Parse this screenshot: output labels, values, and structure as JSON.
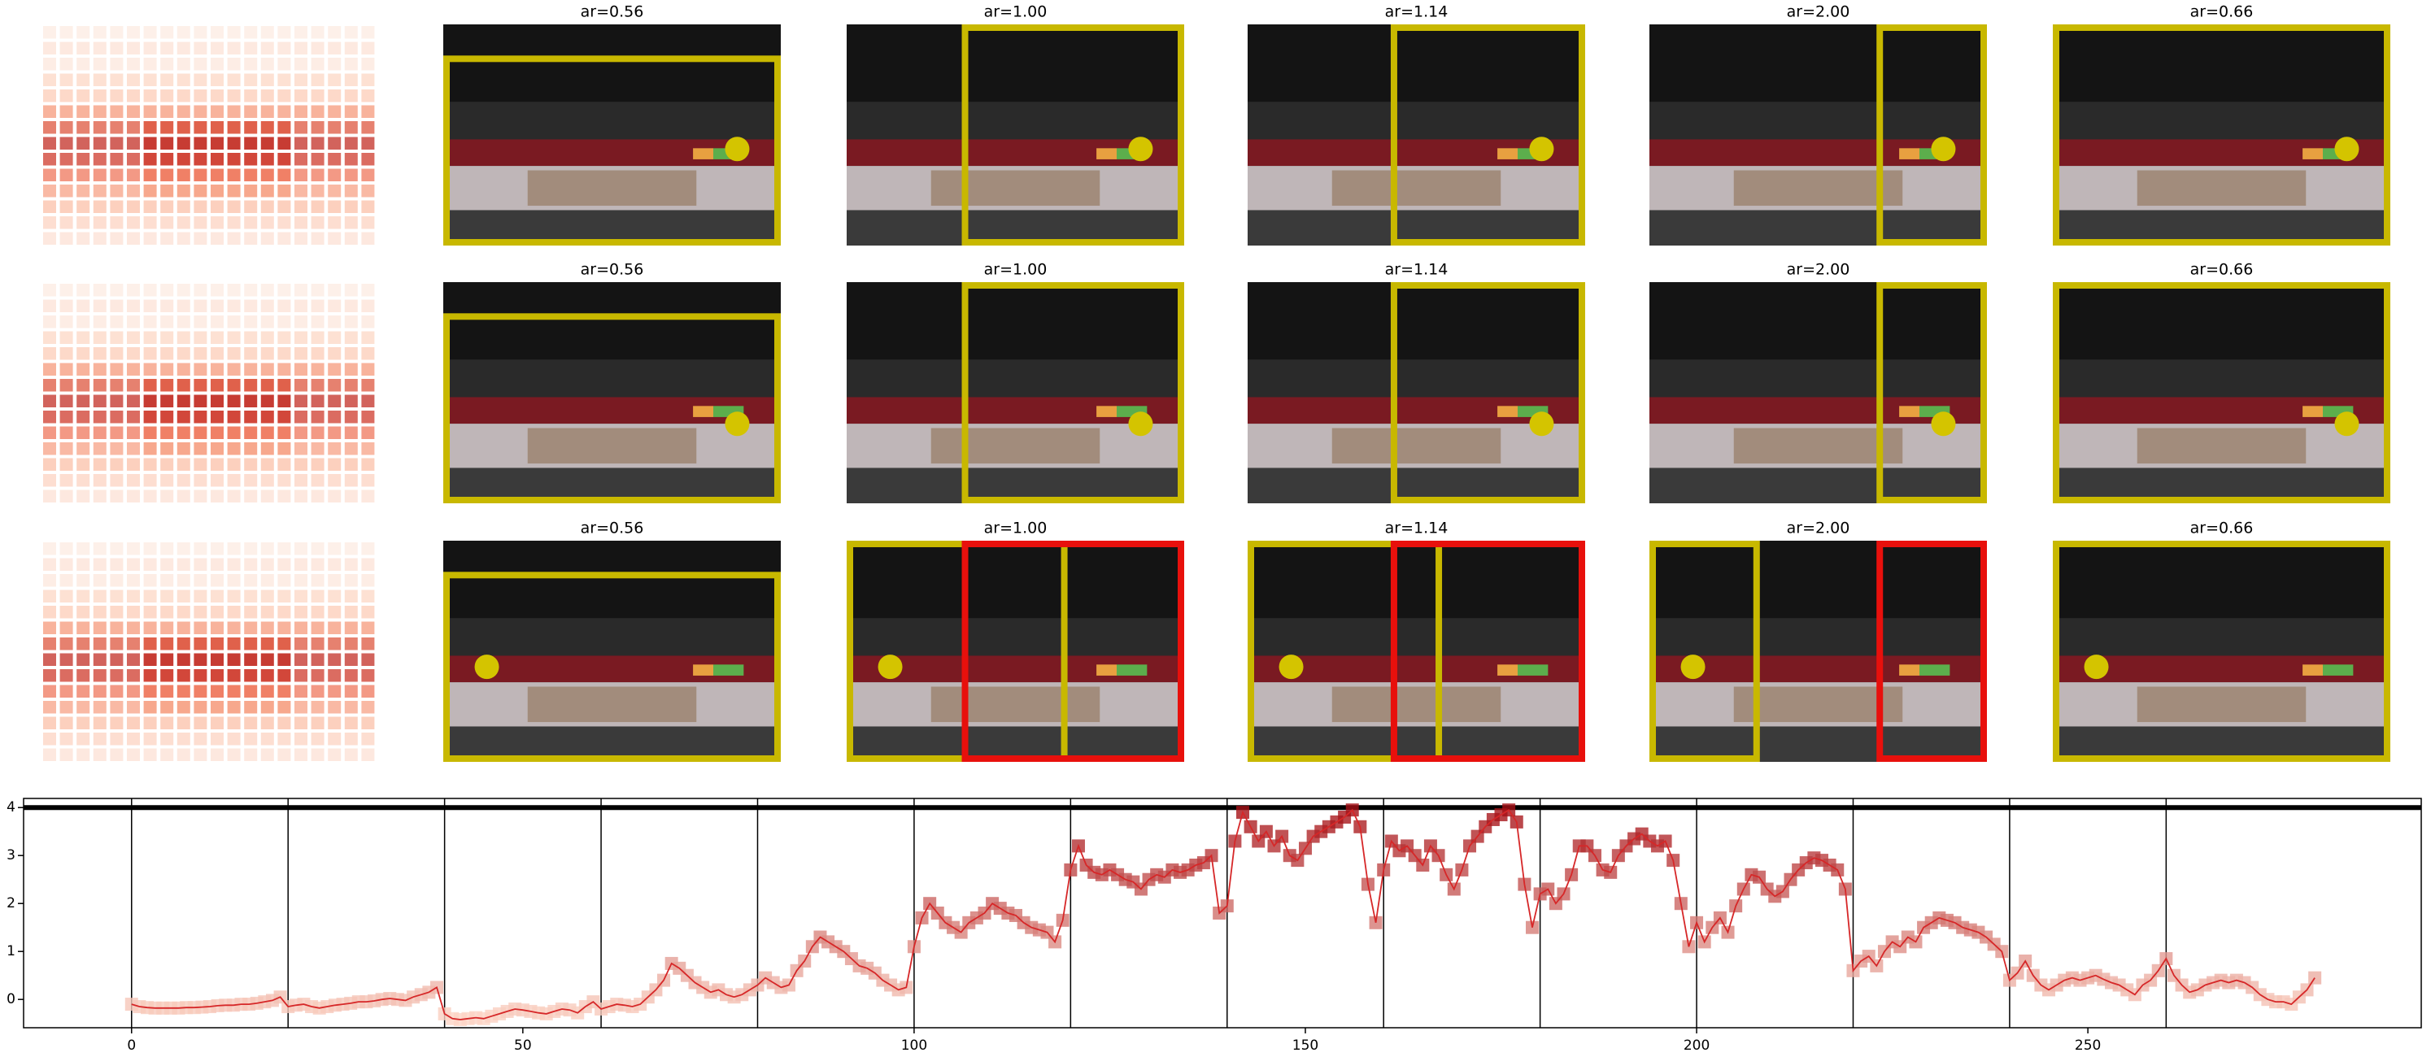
{
  "rows": [
    {
      "titles": [
        "ar=0.56",
        "ar=1.00",
        "ar=1.14",
        "ar=2.00",
        "ar=0.66"
      ]
    },
    {
      "titles": [
        "ar=0.56",
        "ar=1.00",
        "ar=1.14",
        "ar=2.00",
        "ar=0.66"
      ]
    },
    {
      "titles": [
        "ar=0.56",
        "ar=1.00",
        "ar=1.14",
        "ar=2.00",
        "ar=0.66"
      ]
    }
  ],
  "chart_data": {
    "type": "line",
    "x": [
      0,
      1,
      2,
      3,
      4,
      5,
      6,
      7,
      8,
      9,
      10,
      11,
      12,
      13,
      14,
      15,
      16,
      17,
      18,
      19,
      20,
      21,
      22,
      23,
      24,
      25,
      26,
      27,
      28,
      29,
      30,
      31,
      32,
      33,
      34,
      35,
      36,
      37,
      38,
      39,
      40,
      41,
      42,
      43,
      44,
      45,
      46,
      47,
      48,
      49,
      50,
      51,
      52,
      53,
      54,
      55,
      56,
      57,
      58,
      59,
      60,
      61,
      62,
      63,
      64,
      65,
      66,
      67,
      68,
      69,
      70,
      71,
      72,
      73,
      74,
      75,
      76,
      77,
      78,
      79,
      80,
      81,
      82,
      83,
      84,
      85,
      86,
      87,
      88,
      89,
      90,
      91,
      92,
      93,
      94,
      95,
      96,
      97,
      98,
      99,
      100,
      101,
      102,
      103,
      104,
      105,
      106,
      107,
      108,
      109,
      110,
      111,
      112,
      113,
      114,
      115,
      116,
      117,
      118,
      119,
      120,
      121,
      122,
      123,
      124,
      125,
      126,
      127,
      128,
      129,
      130,
      131,
      132,
      133,
      134,
      135,
      136,
      137,
      138,
      139,
      140,
      141,
      142,
      143,
      144,
      145,
      146,
      147,
      148,
      149,
      150,
      151,
      152,
      153,
      154,
      155,
      156,
      157,
      158,
      159,
      160,
      161,
      162,
      163,
      164,
      165,
      166,
      167,
      168,
      169,
      170,
      171,
      172,
      173,
      174,
      175,
      176,
      177,
      178,
      179,
      180,
      181,
      182,
      183,
      184,
      185,
      186,
      187,
      188,
      189,
      190,
      191,
      192,
      193,
      194,
      195,
      196,
      197,
      198,
      199,
      200,
      201,
      202,
      203,
      204,
      205,
      206,
      207,
      208,
      209,
      210,
      211,
      212,
      213,
      214,
      215,
      216,
      217,
      218,
      219,
      220,
      221,
      222,
      223,
      224,
      225,
      226,
      227,
      228,
      229,
      230,
      231,
      232,
      233,
      234,
      235,
      236,
      237,
      238,
      239,
      240,
      241,
      242,
      243,
      244,
      245,
      246,
      247,
      248,
      249,
      250,
      251,
      252,
      253,
      254,
      255,
      256,
      257,
      258,
      259,
      260,
      261,
      262,
      263,
      264,
      265,
      266,
      267,
      268,
      269,
      270,
      271,
      272,
      273,
      274,
      275,
      276,
      277,
      278,
      279
    ],
    "values": [
      -0.1,
      -0.15,
      -0.17,
      -0.18,
      -0.18,
      -0.18,
      -0.18,
      -0.17,
      -0.17,
      -0.16,
      -0.15,
      -0.13,
      -0.12,
      -0.12,
      -0.1,
      -0.1,
      -0.08,
      -0.05,
      -0.02,
      0.05,
      -0.15,
      -0.12,
      -0.1,
      -0.15,
      -0.18,
      -0.15,
      -0.12,
      -0.1,
      -0.08,
      -0.05,
      -0.05,
      -0.03,
      0,
      0.02,
      0,
      -0.02,
      0.05,
      0.1,
      0.15,
      0.25,
      -0.3,
      -0.4,
      -0.42,
      -0.4,
      -0.38,
      -0.4,
      -0.35,
      -0.3,
      -0.25,
      -0.2,
      -0.22,
      -0.25,
      -0.28,
      -0.3,
      -0.25,
      -0.2,
      -0.22,
      -0.28,
      -0.15,
      -0.05,
      -0.2,
      -0.15,
      -0.1,
      -0.12,
      -0.15,
      -0.1,
      0.05,
      0.2,
      0.4,
      0.75,
      0.65,
      0.5,
      0.35,
      0.25,
      0.15,
      0.2,
      0.1,
      0.05,
      0.1,
      0.2,
      0.3,
      0.45,
      0.35,
      0.25,
      0.3,
      0.6,
      0.8,
      1.1,
      1.3,
      1.2,
      1.1,
      1.0,
      0.85,
      0.7,
      0.65,
      0.55,
      0.4,
      0.3,
      0.2,
      0.25,
      1.1,
      1.7,
      2.0,
      1.8,
      1.6,
      1.5,
      1.4,
      1.6,
      1.7,
      1.8,
      2.0,
      1.9,
      1.8,
      1.75,
      1.6,
      1.5,
      1.45,
      1.4,
      1.2,
      1.65,
      2.7,
      3.2,
      2.8,
      2.65,
      2.6,
      2.7,
      2.6,
      2.5,
      2.45,
      2.3,
      2.5,
      2.6,
      2.55,
      2.7,
      2.65,
      2.7,
      2.8,
      2.85,
      3.0,
      1.8,
      1.95,
      3.3,
      3.9,
      3.6,
      3.3,
      3.5,
      3.2,
      3.4,
      3.0,
      2.9,
      3.15,
      3.4,
      3.5,
      3.6,
      3.7,
      3.8,
      3.95,
      3.6,
      2.4,
      1.6,
      2.7,
      3.3,
      3.1,
      3.2,
      3.0,
      2.8,
      3.2,
      3.0,
      2.6,
      2.3,
      2.7,
      3.2,
      3.4,
      3.6,
      3.75,
      3.85,
      3.95,
      3.7,
      2.4,
      1.5,
      2.2,
      2.3,
      2.0,
      2.2,
      2.6,
      3.2,
      3.2,
      3.0,
      2.7,
      2.65,
      3.0,
      3.2,
      3.35,
      3.45,
      3.3,
      3.2,
      3.3,
      2.9,
      2.0,
      1.1,
      1.6,
      1.2,
      1.5,
      1.7,
      1.4,
      1.95,
      2.3,
      2.6,
      2.55,
      2.3,
      2.15,
      2.25,
      2.5,
      2.7,
      2.85,
      2.95,
      2.9,
      2.8,
      2.7,
      2.3,
      0.6,
      0.8,
      0.9,
      0.7,
      1.0,
      1.2,
      1.1,
      1.3,
      1.2,
      1.5,
      1.6,
      1.7,
      1.65,
      1.6,
      1.5,
      1.45,
      1.4,
      1.3,
      1.15,
      1.0,
      0.4,
      0.55,
      0.8,
      0.5,
      0.3,
      0.2,
      0.3,
      0.4,
      0.45,
      0.4,
      0.45,
      0.5,
      0.42,
      0.35,
      0.3,
      0.2,
      0.1,
      0.3,
      0.4,
      0.6,
      0.85,
      0.5,
      0.3,
      0.15,
      0.2,
      0.3,
      0.35,
      0.4,
      0.35,
      0.4,
      0.35,
      0.25,
      0.1,
      0.0,
      -0.05,
      -0.05,
      -0.1,
      0.05,
      0.2,
      0.45
    ],
    "xlim": [
      -13.8,
      292.6
    ],
    "ylim": [
      -0.59,
      4.19
    ],
    "xticks": [
      0,
      50,
      100,
      150,
      200,
      250
    ],
    "yticks": [
      0,
      1,
      2,
      3,
      4
    ],
    "vlines": [
      0,
      20,
      40,
      60,
      80,
      100,
      120,
      140,
      160,
      180,
      200,
      220,
      240,
      260
    ],
    "hline": 4,
    "line_color": "#d62728",
    "marker_colors": {
      "low": "#fcd5c6",
      "high": "#a50f15"
    }
  }
}
